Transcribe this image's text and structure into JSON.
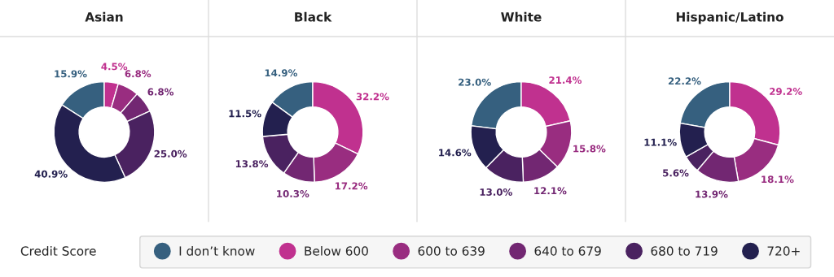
{
  "chart_data": [
    {
      "type": "donut",
      "title": "Asian",
      "legend": "bottom",
      "legend_title": "Credit Score",
      "categories": [
        "I don’t know",
        "Below 600",
        "600 to 639",
        "640 to 679",
        "680 to 719",
        "720+"
      ],
      "colors": [
        "#36607f",
        "#c0318f",
        "#992d80",
        "#722772",
        "#4a2260",
        "#23204f"
      ],
      "values": [
        15.9,
        4.5,
        6.8,
        6.8,
        25.0,
        40.9
      ],
      "value_labels": [
        "15.9%",
        "4.5%",
        "6.8%",
        "6.8%",
        "25.0%",
        "40.9%"
      ]
    },
    {
      "type": "donut",
      "title": "Black",
      "colors": [
        "#36607f",
        "#c0318f",
        "#992d80",
        "#722772",
        "#4a2260",
        "#23204f"
      ],
      "values": [
        14.9,
        32.2,
        17.2,
        10.3,
        13.8,
        11.5
      ],
      "value_labels": [
        "14.9%",
        "32.2%",
        "17.2%",
        "10.3%",
        "13.8%",
        "11.5%"
      ]
    },
    {
      "type": "donut",
      "title": "White",
      "colors": [
        "#36607f",
        "#c0318f",
        "#992d80",
        "#722772",
        "#4a2260",
        "#23204f"
      ],
      "values": [
        23.0,
        21.4,
        15.8,
        12.1,
        13.0,
        14.6
      ],
      "value_labels": [
        "23.0%",
        "21.4%",
        "15.8%",
        "12.1%",
        "13.0%",
        "14.6%"
      ]
    },
    {
      "type": "donut",
      "title": "Hispanic/Latino",
      "colors": [
        "#36607f",
        "#c0318f",
        "#992d80",
        "#722772",
        "#4a2260",
        "#23204f"
      ],
      "values": [
        22.2,
        29.2,
        18.1,
        13.9,
        5.6,
        11.1
      ],
      "value_labels": [
        "22.2%",
        "29.2%",
        "18.1%",
        "13.9%",
        "5.6%",
        "11.1%"
      ]
    }
  ]
}
